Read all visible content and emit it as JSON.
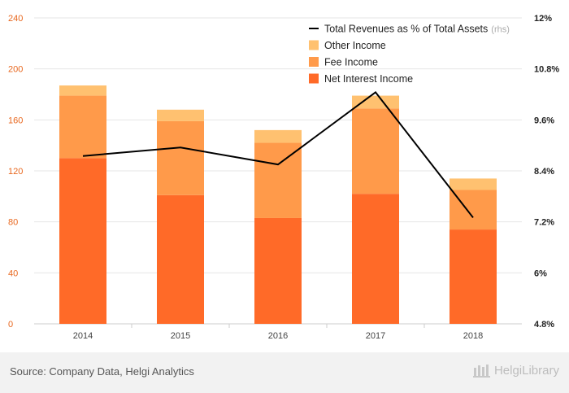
{
  "chart_data": {
    "type": "bar",
    "stacked": true,
    "categories": [
      "2014",
      "2015",
      "2016",
      "2017",
      "2018"
    ],
    "series": [
      {
        "name": "Net Interest Income",
        "axis": "left",
        "color": "#ff6a28",
        "values": [
          130,
          101,
          83,
          102,
          74
        ]
      },
      {
        "name": "Fee Income",
        "axis": "left",
        "color": "#ff9a4a",
        "values": [
          49,
          58,
          59,
          67,
          31
        ]
      },
      {
        "name": "Other Income",
        "axis": "left",
        "color": "#ffc170",
        "values": [
          8,
          9,
          10,
          10,
          9
        ]
      },
      {
        "name": "Total Revenues as % of Total Assets",
        "axis": "right",
        "type": "line",
        "color": "#000000",
        "values": [
          8.75,
          8.95,
          8.55,
          10.25,
          7.3
        ]
      }
    ],
    "ylim_left": [
      0,
      240
    ],
    "yticks_left": [
      "0",
      "40",
      "80",
      "120",
      "160",
      "200",
      "240"
    ],
    "ylim_right": [
      4.8,
      12
    ],
    "yticks_right": [
      "4.8%",
      "6%",
      "7.2%",
      "8.4%",
      "9.6%",
      "10.8%",
      "12%"
    ],
    "legend_position": "top-right",
    "legend": [
      {
        "label": "Total Revenues as % of Total Assets",
        "suffix": "(rhs)",
        "kind": "line"
      },
      {
        "label": "Other Income",
        "kind": "box"
      },
      {
        "label": "Fee Income",
        "kind": "box"
      },
      {
        "label": "Net Interest Income",
        "kind": "box"
      }
    ],
    "grid": true
  },
  "footer": {
    "source": "Source: Company Data, Helgi Analytics",
    "logo": "HelgiLibrary"
  },
  "colors": {
    "grid": "#e6e6e6",
    "left_tick": "#e8671e"
  }
}
